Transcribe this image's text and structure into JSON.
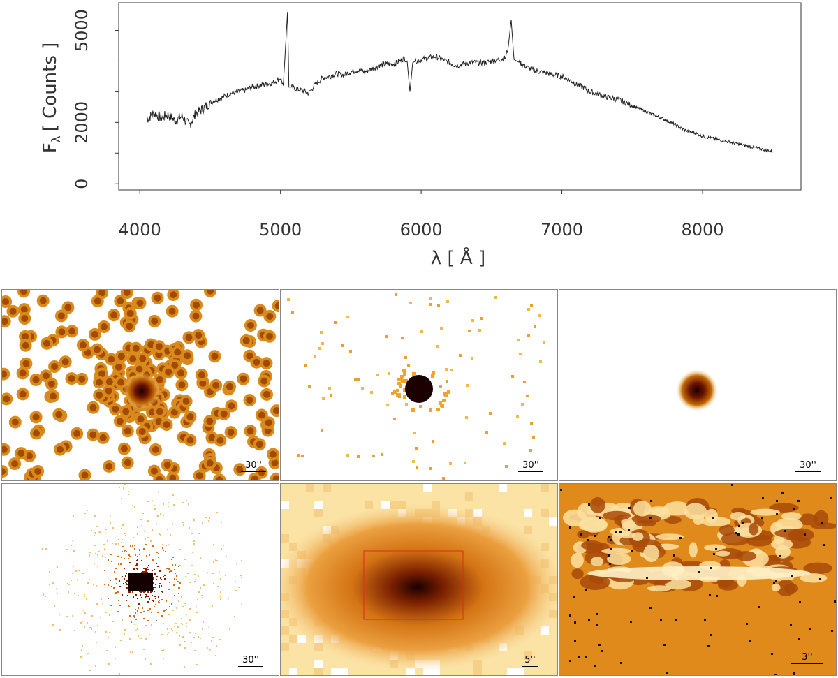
{
  "chart_data": {
    "type": "line",
    "xlabel": "λ [ Å ]",
    "ylabel": "F",
    "ylabel_sub": "λ",
    "ylabel_unit": "[ Counts ]",
    "xlim": [
      3850,
      8700
    ],
    "ylim": [
      -200,
      5900
    ],
    "x_ticks": [
      4000,
      5000,
      6000,
      7000,
      8000
    ],
    "y_ticks": [
      0,
      2000,
      5000
    ],
    "y_minor_ticks": [
      1000,
      3000,
      4000
    ],
    "grid": false,
    "series": [
      {
        "x": [
          4050,
          4100,
          4150,
          4200,
          4250,
          4300,
          4350,
          4400,
          4450,
          4500,
          4550,
          4600,
          4650,
          4700,
          4750,
          4800,
          4850,
          4900,
          4950,
          5000,
          5020,
          5050,
          5060,
          5080,
          5100,
          5150,
          5200,
          5250,
          5300,
          5350,
          5400,
          5450,
          5500,
          5550,
          5600,
          5650,
          5700,
          5750,
          5800,
          5850,
          5880,
          5900,
          5920,
          5940,
          5960,
          6000,
          6050,
          6100,
          6150,
          6200,
          6250,
          6300,
          6350,
          6400,
          6450,
          6500,
          6550,
          6600,
          6620,
          6640,
          6660,
          6700,
          6750,
          6800,
          6850,
          6900,
          6950,
          7000,
          7050,
          7100,
          7150,
          7200,
          7250,
          7300,
          7350,
          7400,
          7450,
          7500,
          7550,
          7600,
          7650,
          7700,
          7750,
          7800,
          7850,
          7900,
          7950,
          8000,
          8050,
          8100,
          8150,
          8200,
          8250,
          8300,
          8350,
          8400,
          8450,
          8500
        ],
        "y": [
          2100,
          2300,
          2150,
          2250,
          2050,
          2200,
          1900,
          2300,
          2450,
          2650,
          2750,
          2850,
          2950,
          3000,
          3050,
          3150,
          3200,
          3250,
          3300,
          3450,
          3200,
          5600,
          3150,
          3150,
          3100,
          3050,
          2950,
          3250,
          3450,
          3500,
          3600,
          3550,
          3650,
          3700,
          3650,
          3750,
          3850,
          3900,
          3900,
          4000,
          4100,
          4000,
          3000,
          3950,
          4000,
          4050,
          4100,
          4150,
          4050,
          3950,
          3850,
          3900,
          3950,
          3950,
          3950,
          4000,
          4050,
          4100,
          4500,
          5350,
          4050,
          3950,
          3800,
          3700,
          3650,
          3600,
          3550,
          3500,
          3400,
          3250,
          3150,
          3000,
          2950,
          2850,
          2800,
          2750,
          2650,
          2550,
          2450,
          2350,
          2250,
          2150,
          2050,
          1950,
          1800,
          1700,
          1650,
          1550,
          1500,
          1450,
          1400,
          1350,
          1300,
          1250,
          1200,
          1150,
          1100,
          1050
        ]
      }
    ]
  },
  "panels": [
    {
      "label": "30''",
      "colormap": "hot"
    },
    {
      "label": "30''",
      "colormap": "hot"
    },
    {
      "label": "30''",
      "colormap": "hot"
    },
    {
      "label": "30''",
      "colormap": "hot"
    },
    {
      "label": "5''",
      "colormap": "hot"
    },
    {
      "label": "3''",
      "colormap": "hot"
    }
  ],
  "colors": {
    "line": "#222222",
    "axis": "#000000",
    "aperture_box": "#e0281e",
    "cmap_dark": "#1a0000",
    "cmap_mid": "#c46a00",
    "cmap_light": "#ffe7b0"
  }
}
